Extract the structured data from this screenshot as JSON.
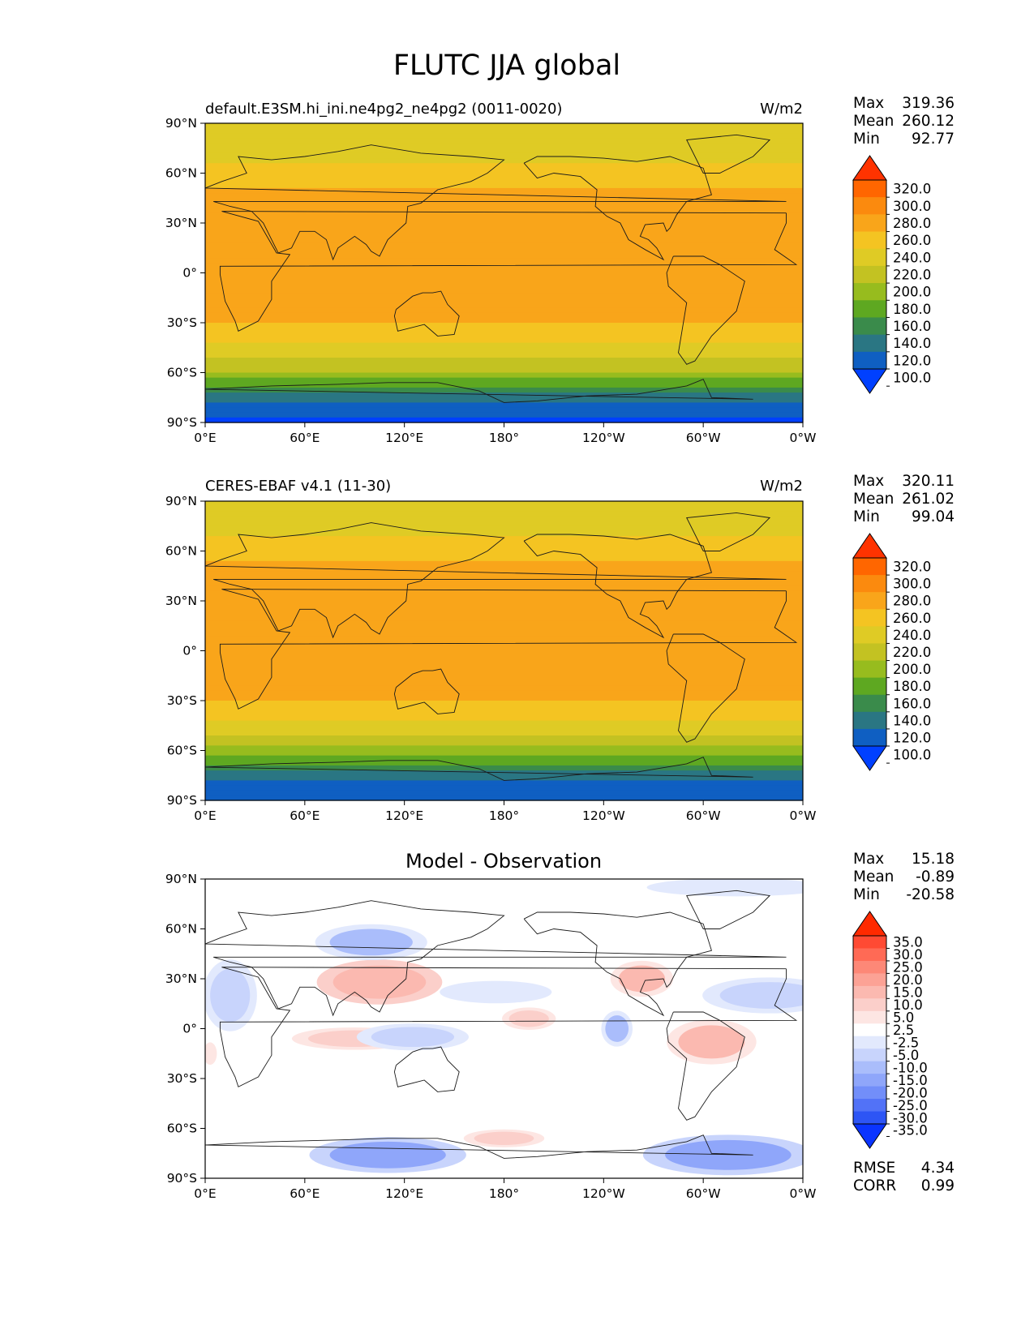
{
  "figure": {
    "title": "FLUTC JJA global"
  },
  "chart_data": [
    {
      "type": "heatmap",
      "id": "model",
      "title_left": "default.E3SM.hi_ini.ne4pg2_ne4pg2 (0011-0020)",
      "title_right": "W/m2",
      "xlabels": [
        "0°E",
        "60°E",
        "120°E",
        "180°",
        "120°W",
        "60°W",
        "0°W"
      ],
      "ylabels": [
        "90°N",
        "60°N",
        "30°N",
        "0°",
        "30°S",
        "60°S",
        "90°S"
      ],
      "stats": {
        "max_label": "Max",
        "max": "319.36",
        "mean_label": "Mean",
        "mean": "260.12",
        "min_label": "Min",
        "min": "92.77"
      },
      "colorbar": {
        "levels": [
          "320.0",
          "300.0",
          "280.0",
          "260.0",
          "240.0",
          "220.0",
          "200.0",
          "180.0",
          "160.0",
          "140.0",
          "120.0",
          "100.0"
        ],
        "colors": [
          "#ff3300",
          "#ff6600",
          "#fb8a0e",
          "#f9a51a",
          "#f4c422",
          "#dfcb25",
          "#c3c222",
          "#97bc1e",
          "#5ea821",
          "#3a8b4b",
          "#2a7683",
          "#0f5fc2",
          "#0040ff"
        ]
      },
      "profile": [
        [
          90,
          223
        ],
        [
          80,
          225
        ],
        [
          70,
          235
        ],
        [
          60,
          245
        ],
        [
          50,
          262
        ],
        [
          40,
          275
        ],
        [
          30,
          278
        ],
        [
          20,
          275
        ],
        [
          10,
          270
        ],
        [
          0,
          266
        ],
        [
          -10,
          268
        ],
        [
          -20,
          270
        ],
        [
          -30,
          262
        ],
        [
          -40,
          245
        ],
        [
          -50,
          225
        ],
        [
          -55,
          212
        ],
        [
          -60,
          195
        ],
        [
          -65,
          178
        ],
        [
          -70,
          150
        ],
        [
          -75,
          132
        ],
        [
          -80,
          115
        ],
        [
          -90,
          95
        ]
      ]
    },
    {
      "type": "heatmap",
      "id": "obs",
      "title_left": "CERES-EBAF v4.1 (11-30)",
      "title_right": "W/m2",
      "xlabels": [
        "0°E",
        "60°E",
        "120°E",
        "180°",
        "120°W",
        "60°W",
        "0°W"
      ],
      "ylabels": [
        "90°N",
        "60°N",
        "30°N",
        "0°",
        "30°S",
        "60°S",
        "90°S"
      ],
      "stats": {
        "max_label": "Max",
        "max": "320.11",
        "mean_label": "Mean",
        "mean": "261.02",
        "min_label": "Min",
        "min": "99.04"
      },
      "colorbar": {
        "levels": [
          "320.0",
          "300.0",
          "280.0",
          "260.0",
          "240.0",
          "220.0",
          "200.0",
          "180.0",
          "160.0",
          "140.0",
          "120.0",
          "100.0"
        ],
        "colors": [
          "#ff3300",
          "#ff6600",
          "#fb8a0e",
          "#f9a51a",
          "#f4c422",
          "#dfcb25",
          "#c3c222",
          "#97bc1e",
          "#5ea821",
          "#3a8b4b",
          "#2a7683",
          "#0f5fc2",
          "#0040ff"
        ]
      },
      "profile": [
        [
          90,
          224
        ],
        [
          80,
          228
        ],
        [
          70,
          238
        ],
        [
          60,
          250
        ],
        [
          50,
          265
        ],
        [
          40,
          277
        ],
        [
          30,
          280
        ],
        [
          20,
          277
        ],
        [
          10,
          272
        ],
        [
          0,
          268
        ],
        [
          -10,
          270
        ],
        [
          -20,
          271
        ],
        [
          -30,
          262
        ],
        [
          -40,
          244
        ],
        [
          -50,
          224
        ],
        [
          -55,
          210
        ],
        [
          -60,
          193
        ],
        [
          -65,
          175
        ],
        [
          -70,
          150
        ],
        [
          -75,
          130
        ],
        [
          -80,
          118
        ],
        [
          -90,
          104
        ]
      ]
    },
    {
      "type": "heatmap",
      "id": "diff",
      "title_center": "Model - Observation",
      "xlabels": [
        "0°E",
        "60°E",
        "120°E",
        "180°",
        "120°W",
        "60°W",
        "0°W"
      ],
      "ylabels": [
        "90°N",
        "60°N",
        "30°N",
        "0°",
        "30°S",
        "60°S",
        "90°S"
      ],
      "stats": {
        "max_label": "Max",
        "max": "15.18",
        "mean_label": "Mean",
        "mean": "-0.89",
        "min_label": "Min",
        "min": "-20.58"
      },
      "metrics": {
        "rmse_label": "RMSE",
        "rmse": "4.34",
        "corr_label": "CORR",
        "corr": "0.99"
      },
      "colorbar": {
        "levels": [
          "35.0",
          "30.0",
          "25.0",
          "20.0",
          "15.0",
          "10.0",
          "5.0",
          "2.5",
          "-2.5",
          "-5.0",
          "-10.0",
          "-15.0",
          "-20.0",
          "-25.0",
          "-30.0",
          "-35.0"
        ],
        "colors": [
          "#ff2a00",
          "#ff4a33",
          "#ff6a55",
          "#fd8877",
          "#fca295",
          "#fbb9b0",
          "#fbcfca",
          "#fde6e3",
          "#ffffff",
          "#e2e9fd",
          "#c8d4fc",
          "#aabdfb",
          "#8fa6fa",
          "#728ef9",
          "#5272f7",
          "#2d55f5",
          "#0a34ff"
        ]
      },
      "anomalies": [
        {
          "lon": 105,
          "lat": 28,
          "rx": 28,
          "ry": 10,
          "value": 12
        },
        {
          "lon": 263,
          "lat": 30,
          "rx": 14,
          "ry": 8,
          "value": 10
        },
        {
          "lon": 305,
          "lat": -8,
          "rx": 20,
          "ry": 10,
          "value": 11
        },
        {
          "lon": 195,
          "lat": 6,
          "rx": 12,
          "ry": 5,
          "value": 6
        },
        {
          "lon": 90,
          "lat": -6,
          "rx": 28,
          "ry": 5,
          "value": 7
        },
        {
          "lon": 180,
          "lat": -66,
          "rx": 18,
          "ry": 4,
          "value": 6
        },
        {
          "lon": 3,
          "lat": -15,
          "rx": 3,
          "ry": 5,
          "value": 3
        },
        {
          "lon": 15,
          "lat": 20,
          "rx": 12,
          "ry": 16,
          "value": -10
        },
        {
          "lon": 340,
          "lat": 20,
          "rx": 30,
          "ry": 8,
          "value": -8
        },
        {
          "lon": 100,
          "lat": 52,
          "rx": 25,
          "ry": 8,
          "value": -11
        },
        {
          "lon": 175,
          "lat": 22,
          "rx": 25,
          "ry": 5,
          "value": -5
        },
        {
          "lon": 248,
          "lat": 0,
          "rx": 7,
          "ry": 8,
          "value": -11
        },
        {
          "lon": 125,
          "lat": -5,
          "rx": 25,
          "ry": 6,
          "value": -6
        },
        {
          "lon": 110,
          "lat": -76,
          "rx": 35,
          "ry": 8,
          "value": -18
        },
        {
          "lon": 315,
          "lat": -76,
          "rx": 38,
          "ry": 9,
          "value": -16
        },
        {
          "lon": 320,
          "lat": 85,
          "rx": 40,
          "ry": 4,
          "value": -4
        }
      ]
    }
  ]
}
